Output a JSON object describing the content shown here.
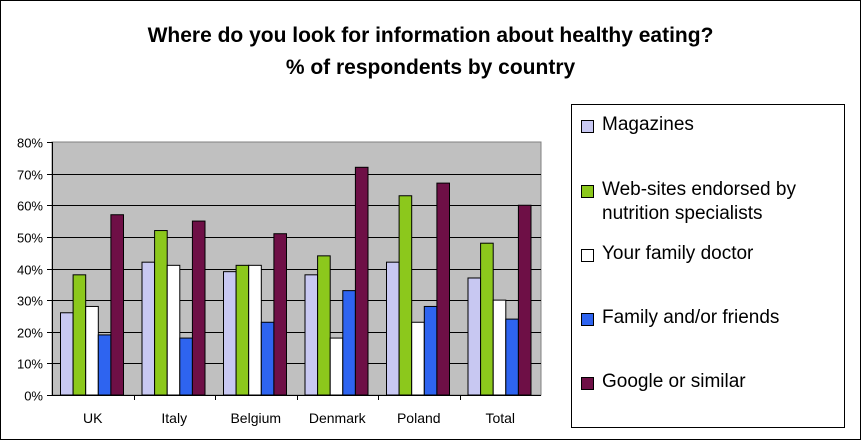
{
  "title_line1": "Where do you look for information about healthy eating?",
  "title_line2": "%  of respondents by country",
  "chart_data": {
    "type": "bar",
    "categories": [
      "UK",
      "Italy",
      "Belgium",
      "Denmark",
      "Poland",
      "Total"
    ],
    "series": [
      {
        "name": "Magazines",
        "color": "#c8c8f2",
        "values": [
          26,
          42,
          39,
          38,
          42,
          37
        ]
      },
      {
        "name": "Web-sites endorsed by nutrition specialists",
        "color": "#8cc81c",
        "values": [
          38,
          52,
          41,
          44,
          63,
          48
        ]
      },
      {
        "name": "Your family doctor",
        "color": "#ffffff",
        "values": [
          28,
          41,
          41,
          18,
          23,
          30
        ]
      },
      {
        "name": "Family and/or friends",
        "color": "#2e64f0",
        "values": [
          19,
          18,
          23,
          33,
          28,
          24
        ]
      },
      {
        "name": "Google or similar",
        "color": "#6e0f46",
        "values": [
          57,
          55,
          51,
          72,
          67,
          60
        ]
      }
    ],
    "y_ticks": [
      "0%",
      "10%",
      "20%",
      "30%",
      "40%",
      "50%",
      "60%",
      "70%",
      "80%"
    ],
    "ylim": [
      0,
      80
    ],
    "grid": true,
    "plot_background": "#c0c0c0",
    "legend_position": "right"
  }
}
